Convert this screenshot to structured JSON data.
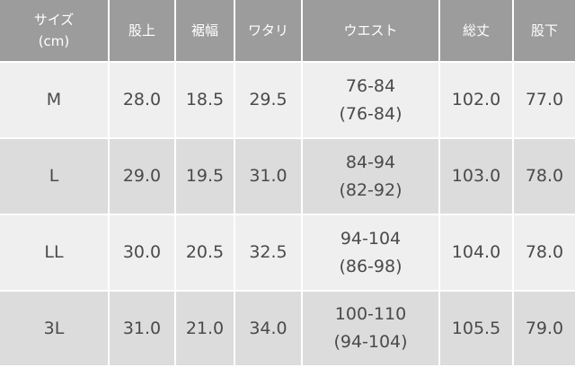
{
  "table": {
    "header": [
      [
        "サイズ",
        "(cm)"
      ],
      [
        "股上"
      ],
      [
        "裾幅"
      ],
      [
        "ワタリ"
      ],
      [
        "ウエスト"
      ],
      [
        "総丈"
      ],
      [
        "股下"
      ]
    ],
    "rows": [
      [
        [
          "M"
        ],
        [
          "28.0"
        ],
        [
          "18.5"
        ],
        [
          "29.5"
        ],
        [
          "76-84",
          "(76-84)"
        ],
        [
          "102.0"
        ],
        [
          "77.0"
        ]
      ],
      [
        [
          "L"
        ],
        [
          "29.0"
        ],
        [
          "19.5"
        ],
        [
          "31.0"
        ],
        [
          "84-94",
          "(82-92)"
        ],
        [
          "103.0"
        ],
        [
          "78.0"
        ]
      ],
      [
        [
          "LL"
        ],
        [
          "30.0"
        ],
        [
          "20.5"
        ],
        [
          "32.5"
        ],
        [
          "94-104",
          "(86-98)"
        ],
        [
          "104.0"
        ],
        [
          "78.0"
        ]
      ],
      [
        [
          "3L"
        ],
        [
          "31.0"
        ],
        [
          "21.0"
        ],
        [
          "34.0"
        ],
        [
          "100-110",
          "(94-104)"
        ],
        [
          "105.5"
        ],
        [
          "79.0"
        ]
      ]
    ]
  }
}
